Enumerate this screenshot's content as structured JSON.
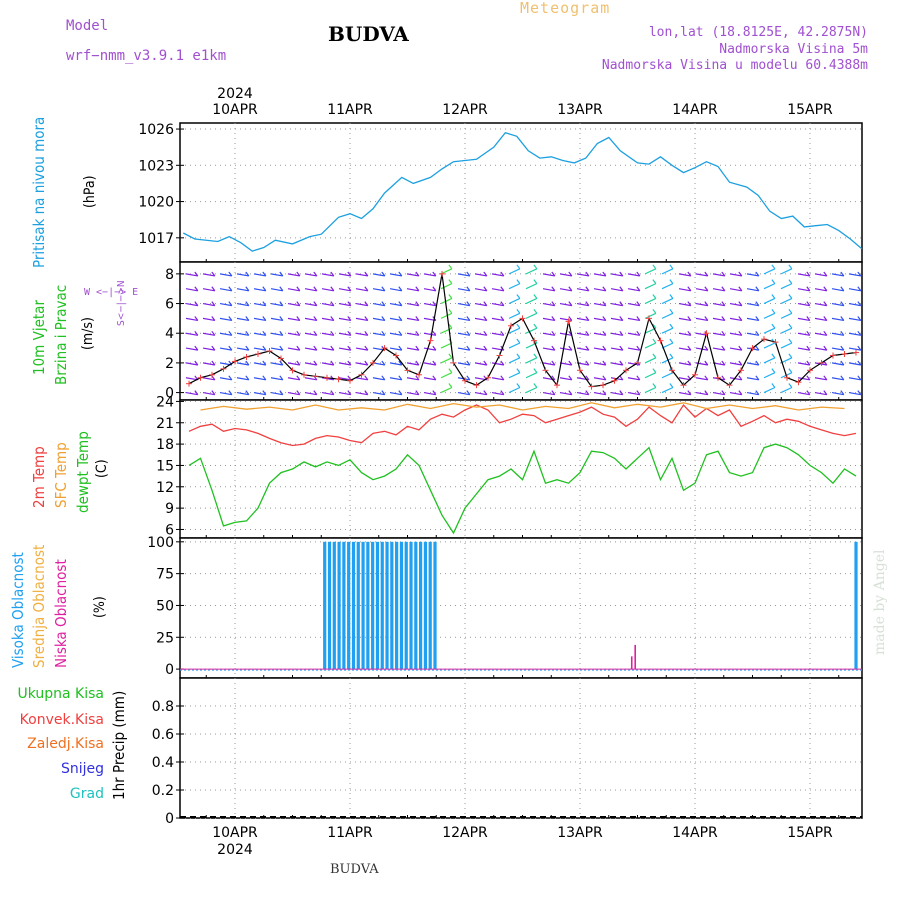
{
  "header": {
    "model_label": "Model",
    "model_name": "wrf−nmm_v3.9.1  e1km",
    "title": "BUDVA",
    "meteogram": "Meteogram",
    "lonlat": "lon,lat (18.8125E, 42.2875N)",
    "elevation": "Nadmorska Visina 5m",
    "model_elevation": "Nadmorska Visina u modelu 60.4388m",
    "watermark": "made by Angel",
    "footer": "BUDVA"
  },
  "time_axis": {
    "year": "2024",
    "days": [
      "10APR",
      "11APR",
      "12APR",
      "13APR",
      "14APR",
      "15APR"
    ]
  },
  "panel_labels": {
    "pressure": [
      "Pritisak na nivou mora",
      "(hPa)"
    ],
    "wind": [
      "10m Vjetar",
      "Brzina i Pravac",
      "(m/s)"
    ],
    "wind_compass": "W  <−|−>  E",
    "wind_compass_v": "S<−|−>N",
    "temp": [
      "2m Temp",
      "SFC Temp",
      "dewpt Temp",
      "(C)"
    ],
    "cloud": [
      "Visoka Oblacnost",
      "Srednja Oblacnost",
      "Niska Oblacnost",
      "(%)"
    ],
    "precip_units": "1hr Precip (mm)",
    "precip_legend": [
      "Ukupna Kisa",
      "Konvek.Kisa",
      "Zaledj.Kisa",
      "Snijeg",
      "Grad"
    ]
  },
  "colors": {
    "pressure": "#1ca0e0",
    "temp2m": "#f04040",
    "sfc": "#f0a030",
    "dewpt": "#20c020",
    "high_cloud": "#20a0f0",
    "mid_cloud": "#f0b040",
    "low_cloud": "#e020a0",
    "total_rain": "#20c020",
    "conv_rain": "#f04040",
    "frz_rain": "#f07020",
    "snow": "#3030e0",
    "hail": "#20c0c0",
    "wind_label": "#20c020",
    "compass": "#a050d0"
  },
  "chart_data": [
    {
      "type": "line",
      "panel": "pressure",
      "ylabel": "(hPa)",
      "ylim": [
        1015,
        1026.5
      ],
      "yticks": [
        1017,
        1020,
        1023,
        1026
      ],
      "x_unit": "days since 10APR 00UTC",
      "series": [
        {
          "name": "Pritisak na nivou mora",
          "x": [
            -0.45,
            -0.35,
            -0.15,
            -0.05,
            0.05,
            0.15,
            0.25,
            0.35,
            0.5,
            0.65,
            0.75,
            0.9,
            1.0,
            1.1,
            1.2,
            1.3,
            1.45,
            1.55,
            1.7,
            1.8,
            1.9,
            2.0,
            2.1,
            2.25,
            2.35,
            2.45,
            2.55,
            2.65,
            2.75,
            2.85,
            2.95,
            3.05,
            3.15,
            3.25,
            3.35,
            3.5,
            3.6,
            3.7,
            3.8,
            3.9,
            4.0,
            4.1,
            4.2,
            4.3,
            4.45,
            4.55,
            4.65,
            4.75,
            4.85,
            4.95,
            5.05,
            5.15,
            5.25,
            5.35,
            5.45
          ],
          "y": [
            1017.4,
            1016.9,
            1016.7,
            1017.1,
            1016.6,
            1015.9,
            1016.2,
            1016.8,
            1016.5,
            1017.1,
            1017.3,
            1018.7,
            1019.0,
            1018.6,
            1019.4,
            1020.7,
            1022.0,
            1021.5,
            1022.0,
            1022.7,
            1023.3,
            1023.4,
            1023.5,
            1024.5,
            1025.7,
            1025.4,
            1024.2,
            1023.6,
            1023.7,
            1023.4,
            1023.2,
            1023.6,
            1024.8,
            1025.3,
            1024.2,
            1023.2,
            1023.1,
            1023.7,
            1023.0,
            1022.4,
            1022.8,
            1023.3,
            1022.9,
            1021.6,
            1021.2,
            1020.5,
            1019.2,
            1018.6,
            1018.8,
            1017.9,
            1018.0,
            1018.1,
            1017.6,
            1016.9,
            1016.1
          ]
        }
      ]
    },
    {
      "type": "line",
      "panel": "wind",
      "ylabel": "(m/s)",
      "ylim": [
        -0.5,
        8.8
      ],
      "yticks": [
        0,
        2,
        4,
        6,
        8
      ],
      "series": [
        {
          "name": "10m Vjetar",
          "x": [
            -0.5,
            -0.4,
            -0.3,
            -0.2,
            -0.1,
            0.0,
            0.1,
            0.2,
            0.3,
            0.4,
            0.5,
            0.6,
            0.7,
            0.8,
            0.9,
            1.0,
            1.1,
            1.2,
            1.3,
            1.4,
            1.5,
            1.6,
            1.7,
            1.8,
            1.9,
            2.0,
            2.1,
            2.2,
            2.3,
            2.4,
            2.5,
            2.6,
            2.7,
            2.8,
            2.9,
            3.0,
            3.1,
            3.2,
            3.3,
            3.4,
            3.5,
            3.6,
            3.7,
            3.8,
            3.9,
            4.0,
            4.1,
            4.2,
            4.3,
            4.4,
            4.5,
            4.6,
            4.7,
            4.8,
            4.9,
            5.0,
            5.1,
            5.2,
            5.3,
            5.4,
            5.5
          ],
          "y": [
            0.5,
            0.6,
            1.0,
            1.2,
            1.6,
            2.1,
            2.4,
            2.6,
            2.8,
            2.3,
            1.5,
            1.2,
            1.1,
            1.0,
            0.9,
            0.8,
            1.2,
            2.0,
            3.0,
            2.5,
            1.5,
            1.2,
            3.5,
            8.0,
            2.0,
            0.8,
            0.5,
            1.0,
            2.5,
            4.5,
            5.0,
            3.5,
            1.5,
            0.5,
            4.8,
            1.5,
            0.4,
            0.5,
            0.8,
            1.5,
            2.0,
            5.0,
            3.5,
            1.5,
            0.5,
            1.2,
            4.0,
            1.0,
            0.5,
            1.5,
            3.0,
            3.6,
            3.4,
            1.0,
            0.7,
            1.5,
            2.0,
            2.5,
            2.6,
            2.7,
            3.0
          ]
        }
      ]
    },
    {
      "type": "line",
      "panel": "temperature",
      "ylabel": "(C)",
      "ylim": [
        4.8,
        24.2
      ],
      "yticks": [
        6,
        9,
        12,
        15,
        18,
        21,
        24
      ],
      "series": [
        {
          "name": "2m Temp",
          "x": [
            -0.5,
            -0.4,
            -0.3,
            -0.2,
            -0.1,
            0.0,
            0.1,
            0.2,
            0.3,
            0.4,
            0.5,
            0.6,
            0.7,
            0.8,
            0.9,
            1.0,
            1.1,
            1.2,
            1.3,
            1.4,
            1.5,
            1.6,
            1.7,
            1.8,
            1.9,
            2.0,
            2.1,
            2.2,
            2.3,
            2.4,
            2.5,
            2.6,
            2.7,
            2.8,
            2.9,
            3.0,
            3.1,
            3.2,
            3.3,
            3.4,
            3.5,
            3.6,
            3.7,
            3.8,
            3.9,
            4.0,
            4.1,
            4.2,
            4.3,
            4.4,
            4.5,
            4.6,
            4.7,
            4.8,
            4.9,
            5.0,
            5.1,
            5.2,
            5.3,
            5.4,
            5.5
          ],
          "y": [
            21.0,
            19.8,
            20.5,
            20.8,
            19.8,
            20.2,
            20.0,
            19.5,
            18.8,
            18.2,
            17.8,
            18.0,
            18.8,
            19.2,
            19.0,
            18.5,
            18.2,
            19.5,
            19.8,
            19.3,
            20.5,
            20.0,
            21.5,
            22.2,
            21.8,
            22.8,
            23.5,
            22.8,
            21.0,
            21.5,
            22.2,
            22.0,
            21.0,
            21.5,
            22.0,
            22.5,
            23.2,
            22.2,
            21.8,
            20.5,
            21.5,
            23.2,
            22.0,
            21.0,
            23.5,
            21.8,
            23.0,
            22.0,
            22.8,
            20.5,
            21.2,
            22.0,
            21.0,
            21.5,
            21.2,
            20.5,
            20.0,
            19.5,
            19.2,
            19.5,
            20.5
          ]
        },
        {
          "name": "SFC Temp",
          "x": [
            -0.5,
            -0.3,
            -0.1,
            0.1,
            0.3,
            0.5,
            0.7,
            0.9,
            1.1,
            1.3,
            1.5,
            1.7,
            1.9,
            2.1,
            2.3,
            2.5,
            2.7,
            2.9,
            3.1,
            3.3,
            3.5,
            3.7,
            3.9,
            4.1,
            4.3,
            4.5,
            4.7,
            4.9,
            5.1,
            5.3,
            5.5
          ],
          "y": [
            23.5,
            22.8,
            23.3,
            22.9,
            23.2,
            22.8,
            23.5,
            22.8,
            23.1,
            22.8,
            23.6,
            23.0,
            23.7,
            23.2,
            23.5,
            22.8,
            23.3,
            23.0,
            23.8,
            23.1,
            23.6,
            23.2,
            23.8,
            23.0,
            23.5,
            23.0,
            23.4,
            22.8,
            23.2,
            23.0,
            23.3
          ]
        },
        {
          "name": "dewpt Temp",
          "x": [
            -0.5,
            -0.4,
            -0.3,
            -0.2,
            -0.1,
            0.0,
            0.1,
            0.2,
            0.3,
            0.4,
            0.5,
            0.6,
            0.7,
            0.8,
            0.9,
            1.0,
            1.1,
            1.2,
            1.3,
            1.4,
            1.5,
            1.6,
            1.7,
            1.8,
            1.9,
            2.0,
            2.1,
            2.2,
            2.3,
            2.4,
            2.5,
            2.6,
            2.7,
            2.8,
            2.9,
            3.0,
            3.1,
            3.2,
            3.3,
            3.4,
            3.5,
            3.6,
            3.7,
            3.8,
            3.9,
            4.0,
            4.1,
            4.2,
            4.3,
            4.4,
            4.5,
            4.6,
            4.7,
            4.8,
            4.9,
            5.0,
            5.1,
            5.2,
            5.3,
            5.4,
            5.5
          ],
          "y": [
            14.0,
            15.0,
            16.0,
            11.5,
            6.5,
            7.0,
            7.2,
            9.0,
            12.5,
            14.0,
            14.5,
            15.5,
            14.8,
            15.5,
            15.0,
            15.8,
            14.0,
            13.0,
            13.5,
            14.5,
            16.5,
            15.0,
            11.5,
            8.0,
            5.5,
            9.0,
            11.0,
            13.0,
            13.5,
            14.5,
            13.0,
            17.0,
            12.5,
            13.0,
            12.5,
            14.0,
            17.0,
            16.8,
            16.0,
            14.5,
            16.0,
            17.5,
            13.0,
            16.0,
            11.5,
            12.5,
            16.5,
            17.0,
            14.0,
            13.5,
            14.0,
            17.5,
            18.0,
            17.5,
            16.5,
            15.0,
            14.0,
            12.5,
            14.5,
            13.5,
            10.5
          ]
        }
      ]
    },
    {
      "type": "bar",
      "panel": "cloud",
      "ylabel": "(%)",
      "ylim": [
        -7,
        103
      ],
      "yticks": [
        0,
        25,
        50,
        75,
        100
      ],
      "series": [
        {
          "name": "Visoka Oblacnost",
          "x_start": 0.78,
          "x_end": 1.76,
          "x_step": 0.0417,
          "value": 100,
          "extra": [
            {
              "x": 5.4,
              "value": 100
            }
          ]
        },
        {
          "name": "Niska Oblacnost",
          "points": [
            {
              "x": 3.45,
              "value": 10
            },
            {
              "x": 3.48,
              "value": 19
            }
          ]
        }
      ]
    },
    {
      "type": "bar",
      "panel": "precip",
      "ylabel": "1hr Precip (mm)",
      "ylim": [
        0,
        1.0
      ],
      "yticks": [
        0,
        0.2,
        0.4,
        0.6,
        0.8
      ],
      "series": []
    }
  ]
}
